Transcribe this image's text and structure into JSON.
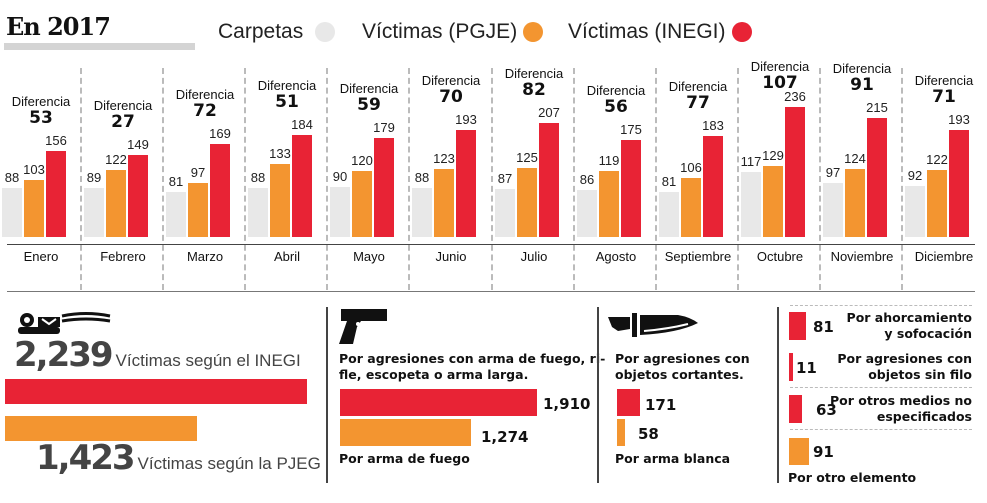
{
  "header": {
    "title": "En 2017"
  },
  "colors": {
    "carpetas": "#e8e8e8",
    "pgje": "#f39530",
    "inegi": "#e82335",
    "text": "#111111",
    "big_number": "#444444"
  },
  "chart_data": {
    "type": "bar",
    "title": "En 2017",
    "diff_label": "Diferencia",
    "categories": [
      "Enero",
      "Febrero",
      "Marzo",
      "Abril",
      "Mayo",
      "Junio",
      "Julio",
      "Agosto",
      "Septiembre",
      "Octubre",
      "Noviembre",
      "Diciembre"
    ],
    "series": [
      {
        "name": "Carpetas",
        "color": "#e8e8e8",
        "values": [
          88,
          89,
          81,
          88,
          90,
          88,
          87,
          86,
          81,
          117,
          97,
          92
        ]
      },
      {
        "name": "Víctimas (PGJE)",
        "color": "#f39530",
        "values": [
          103,
          122,
          97,
          133,
          120,
          123,
          125,
          119,
          106,
          129,
          124,
          122
        ]
      },
      {
        "name": "Víctimas (INEGI)",
        "color": "#e82335",
        "values": [
          156,
          149,
          169,
          184,
          179,
          193,
          207,
          175,
          183,
          236,
          215,
          193
        ]
      }
    ],
    "differences": [
      53,
      27,
      72,
      51,
      59,
      70,
      82,
      56,
      77,
      107,
      91,
      71
    ],
    "legend": "top",
    "grid": false
  },
  "totals": {
    "inegi": {
      "value": 2239,
      "display": "2,239",
      "label": "Víctimas según el INEGI"
    },
    "pgje": {
      "value": 1423,
      "display": "1,423",
      "label": "Víctimas según la PJEG"
    }
  },
  "firearm": {
    "title": "Por agresiones con arma de fuego, ri-fle, escopeta o arma larga.",
    "title_line1": "Por agresiones con arma de fuego, ri-",
    "title_line2": "fle, escopeta o arma larga.",
    "inegi": {
      "value": 1910,
      "display": "1,910"
    },
    "pgje": {
      "value": 1274,
      "display": "1,274"
    },
    "pgje_label": "Por arma de fuego"
  },
  "blade": {
    "title_line1": "Por agresiones con",
    "title_line2": "objetos cortantes.",
    "inegi": {
      "value": 171,
      "display": "171"
    },
    "pgje": {
      "value": 58,
      "display": "58"
    },
    "pgje_label": "Por arma blanca"
  },
  "other": {
    "items": [
      {
        "value": 81,
        "display": "81",
        "line1": "Por ahorcamiento",
        "line2": "y sofocación"
      },
      {
        "value": 11,
        "display": "11",
        "line1": "Por agresiones con",
        "line2": "objetos sin filo"
      },
      {
        "value": 63,
        "display": "63",
        "line1": "Por otros medios no",
        "line2": "especificados"
      }
    ],
    "pgje": {
      "value": 91,
      "display": "91",
      "label": "Por otro elemento"
    }
  }
}
